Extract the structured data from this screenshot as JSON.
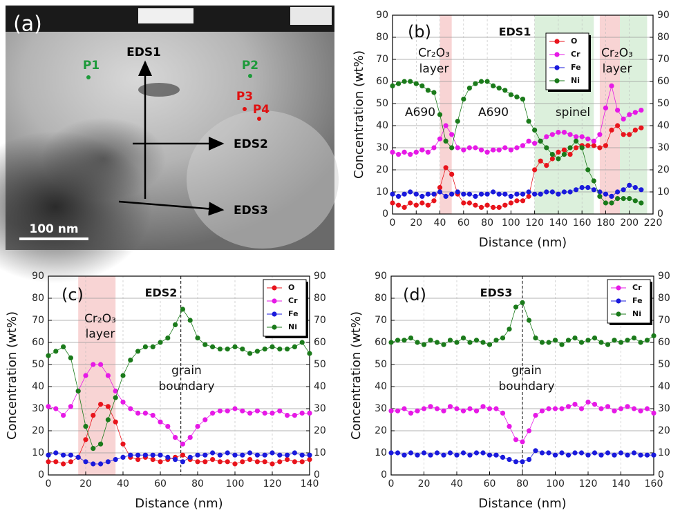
{
  "image": {
    "panel_label": "(a)",
    "points": [
      "P1",
      "P2",
      "P3",
      "P4"
    ],
    "profiles": [
      "EDS1",
      "EDS2",
      "EDS3"
    ],
    "scale_bar": "100 nm"
  },
  "chart_data": [
    {
      "type": "line",
      "panel_label": "(b)",
      "title": "EDS1",
      "x_label": "Distance (nm)",
      "y_label": "Concentration (wt%)",
      "annotations": [
        "Cr₂O₃",
        "layer",
        "Cr₂O₃",
        "layer",
        "A690",
        "A690",
        "spinel"
      ],
      "xlim": [
        0,
        220
      ],
      "xticks": [
        0,
        20,
        40,
        60,
        80,
        100,
        120,
        140,
        160,
        180,
        200,
        220
      ],
      "ylim": [
        0,
        90
      ],
      "yticks": [
        0,
        10,
        20,
        30,
        40,
        50,
        60,
        70,
        80,
        90
      ],
      "y2lim": [
        0,
        90
      ],
      "y2ticks": [
        0,
        10,
        20,
        30,
        40,
        50,
        60,
        70,
        80,
        90
      ],
      "grid": true,
      "highlight_regions": [
        {
          "from": 40,
          "to": 50,
          "color": "#f8d4d4"
        },
        {
          "from": 120,
          "to": 170,
          "color": "#dcf0dc"
        },
        {
          "from": 175,
          "to": 192,
          "color": "#f8d4d4"
        },
        {
          "from": 192,
          "to": 215,
          "color": "#dcf0dc"
        }
      ],
      "x": [
        0,
        5,
        10,
        15,
        20,
        25,
        30,
        35,
        40,
        45,
        50,
        55,
        60,
        65,
        70,
        75,
        80,
        85,
        90,
        95,
        100,
        105,
        110,
        115,
        120,
        125,
        130,
        135,
        140,
        145,
        150,
        155,
        160,
        165,
        170,
        175,
        180,
        185,
        190,
        195,
        200,
        205,
        210
      ],
      "series": [
        {
          "name": "O",
          "color": "#e8141c",
          "values": [
            5,
            4,
            3,
            5,
            4,
            5,
            4,
            6,
            12,
            21,
            18,
            9,
            5,
            5,
            4,
            3,
            4,
            3,
            3,
            4,
            5,
            6,
            6,
            8,
            20,
            24,
            22,
            25,
            28,
            29,
            27,
            30,
            31,
            31,
            31,
            30,
            31,
            38,
            40,
            36,
            36,
            38,
            39
          ]
        },
        {
          "name": "Cr",
          "color": "#e619e6",
          "values": [
            28,
            27,
            28,
            27,
            28,
            29,
            28,
            30,
            34,
            40,
            36,
            30,
            29,
            30,
            30,
            29,
            28,
            29,
            29,
            30,
            29,
            30,
            31,
            33,
            32,
            33,
            35,
            36,
            37,
            37,
            36,
            35,
            35,
            34,
            33,
            36,
            48,
            58,
            47,
            43,
            45,
            46,
            47
          ]
        },
        {
          "name": "Fe",
          "color": "#1a1adc",
          "values": [
            9,
            8,
            9,
            10,
            9,
            8,
            9,
            9,
            10,
            8,
            9,
            10,
            9,
            9,
            8,
            9,
            9,
            10,
            9,
            9,
            8,
            9,
            9,
            10,
            9,
            9,
            10,
            10,
            9,
            10,
            10,
            11,
            12,
            12,
            11,
            10,
            9,
            8,
            10,
            11,
            13,
            12,
            11
          ]
        },
        {
          "name": "Ni",
          "color": "#1a7a1a",
          "values": [
            58,
            59,
            60,
            60,
            59,
            58,
            56,
            55,
            45,
            33,
            30,
            42,
            52,
            57,
            59,
            60,
            60,
            58,
            57,
            56,
            54,
            53,
            52,
            42,
            38,
            33,
            30,
            27,
            25,
            27,
            30,
            33,
            30,
            20,
            15,
            8,
            5,
            5,
            7,
            7,
            7,
            6,
            5
          ]
        }
      ]
    },
    {
      "type": "line",
      "panel_label": "(c)",
      "title": "EDS2",
      "x_label": "Distance (nm)",
      "y_label": "Concentration (wt%)",
      "annotations": [
        "Cr₂O₃",
        "layer",
        "grain",
        "boundary"
      ],
      "xlim": [
        0,
        140
      ],
      "xticks": [
        0,
        20,
        40,
        60,
        80,
        100,
        120,
        140
      ],
      "ylim": [
        0,
        90
      ],
      "yticks": [
        0,
        10,
        20,
        30,
        40,
        50,
        60,
        70,
        80,
        90
      ],
      "y2lim": [
        0,
        90
      ],
      "y2ticks": [
        0,
        10,
        20,
        30,
        40,
        50,
        60,
        70,
        80,
        90
      ],
      "grid": true,
      "highlight_regions": [
        {
          "from": 16,
          "to": 36,
          "color": "#f8d4d4"
        }
      ],
      "marker_x": 71,
      "x": [
        0,
        4,
        8,
        12,
        16,
        20,
        24,
        28,
        32,
        36,
        40,
        44,
        48,
        52,
        56,
        60,
        64,
        68,
        72,
        76,
        80,
        84,
        88,
        92,
        96,
        100,
        104,
        108,
        112,
        116,
        120,
        124,
        128,
        132,
        136,
        140
      ],
      "series": [
        {
          "name": "O",
          "color": "#e8141c",
          "values": [
            6,
            6,
            5,
            6,
            8,
            16,
            27,
            32,
            31,
            24,
            14,
            8,
            7,
            8,
            7,
            6,
            7,
            8,
            9,
            7,
            6,
            6,
            7,
            6,
            6,
            5,
            6,
            7,
            6,
            6,
            5,
            6,
            7,
            6,
            6,
            7
          ]
        },
        {
          "name": "Cr",
          "color": "#e619e6",
          "values": [
            31,
            30,
            27,
            31,
            38,
            45,
            50,
            50,
            45,
            38,
            33,
            30,
            28,
            28,
            27,
            24,
            22,
            17,
            14,
            17,
            22,
            25,
            28,
            29,
            29,
            30,
            29,
            28,
            29,
            28,
            28,
            29,
            27,
            27,
            28,
            28
          ]
        },
        {
          "name": "Fe",
          "color": "#1a1adc",
          "values": [
            9,
            10,
            9,
            9,
            8,
            6,
            5,
            5,
            6,
            7,
            8,
            9,
            9,
            9,
            9,
            9,
            8,
            7,
            6,
            8,
            9,
            9,
            10,
            9,
            10,
            9,
            9,
            10,
            9,
            9,
            10,
            9,
            9,
            10,
            9,
            9
          ]
        },
        {
          "name": "Ni",
          "color": "#1a7a1a",
          "values": [
            54,
            56,
            58,
            53,
            38,
            22,
            12,
            14,
            25,
            35,
            45,
            52,
            56,
            58,
            58,
            60,
            62,
            68,
            75,
            70,
            62,
            59,
            58,
            57,
            57,
            58,
            57,
            55,
            56,
            57,
            58,
            57,
            57,
            58,
            60,
            55
          ]
        }
      ]
    },
    {
      "type": "line",
      "panel_label": "(d)",
      "title": "EDS3",
      "x_label": "Distance (nm)",
      "y_label": "Concentration (wt%)",
      "annotations": [
        "grain",
        "boundary"
      ],
      "xlim": [
        0,
        160
      ],
      "xticks": [
        0,
        20,
        40,
        60,
        80,
        100,
        120,
        140,
        160
      ],
      "ylim": [
        0,
        90
      ],
      "yticks": [
        0,
        10,
        20,
        30,
        40,
        50,
        60,
        70,
        80,
        90
      ],
      "y2lim": [
        0,
        90
      ],
      "y2ticks": [
        0,
        10,
        20,
        30,
        40,
        50,
        60,
        70,
        80,
        90
      ],
      "grid": true,
      "highlight_regions": [],
      "marker_x": 80,
      "x": [
        0,
        4,
        8,
        12,
        16,
        20,
        24,
        28,
        32,
        36,
        40,
        44,
        48,
        52,
        56,
        60,
        64,
        68,
        72,
        76,
        80,
        84,
        88,
        92,
        96,
        100,
        104,
        108,
        112,
        116,
        120,
        124,
        128,
        132,
        136,
        140,
        144,
        148,
        152,
        156,
        160
      ],
      "series": [
        {
          "name": "Cr",
          "color": "#e619e6",
          "values": [
            29,
            29,
            30,
            28,
            29,
            30,
            31,
            30,
            29,
            31,
            30,
            29,
            30,
            29,
            31,
            30,
            30,
            28,
            22,
            16,
            15,
            20,
            27,
            29,
            30,
            30,
            30,
            31,
            32,
            30,
            33,
            32,
            30,
            31,
            29,
            30,
            31,
            30,
            29,
            30,
            28
          ]
        },
        {
          "name": "Fe",
          "color": "#1a1adc",
          "values": [
            10,
            10,
            9,
            10,
            9,
            10,
            9,
            10,
            9,
            10,
            9,
            10,
            9,
            10,
            10,
            9,
            9,
            8,
            7,
            6,
            6,
            7,
            11,
            10,
            10,
            9,
            10,
            9,
            10,
            10,
            9,
            10,
            9,
            10,
            9,
            10,
            9,
            10,
            9,
            9,
            9
          ]
        },
        {
          "name": "Ni",
          "color": "#1a7a1a",
          "values": [
            60,
            61,
            61,
            62,
            60,
            59,
            61,
            60,
            59,
            61,
            60,
            62,
            60,
            61,
            60,
            59,
            61,
            62,
            66,
            76,
            78,
            70,
            62,
            60,
            60,
            61,
            59,
            61,
            62,
            60,
            61,
            62,
            60,
            59,
            61,
            60,
            61,
            62,
            60,
            61,
            63
          ]
        }
      ]
    }
  ]
}
